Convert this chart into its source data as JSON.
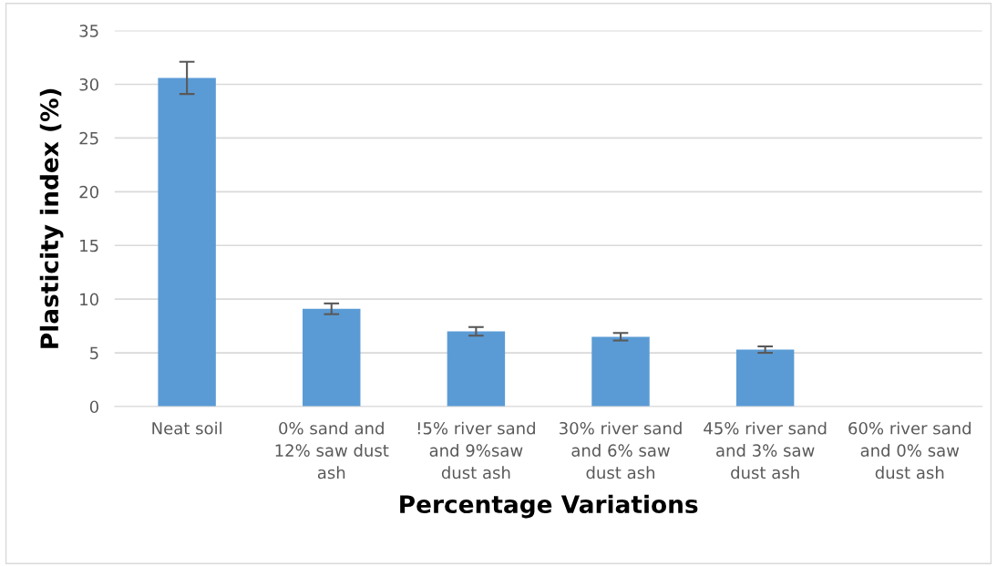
{
  "chart_data": {
    "type": "bar",
    "xlabel": "Percentage Variations",
    "ylabel": "Plasticity index (%)",
    "categories": [
      "Neat soil",
      "0% sand and\n12% saw dust\nash",
      "!5% river sand\nand 9%saw\ndust ash",
      "30% river sand\nand 6% saw\ndust ash",
      "45% river sand\nand 3% saw\ndust ash",
      "60% river sand\nand 0% saw\ndust ash"
    ],
    "values": [
      30.6,
      9.1,
      7.0,
      6.5,
      5.3,
      0
    ],
    "errors": [
      1.5,
      0.5,
      0.4,
      0.35,
      0.3,
      null
    ],
    "color": "#5b9bd5",
    "ylim": [
      0,
      35
    ],
    "yticks": [
      0,
      5,
      10,
      15,
      20,
      25,
      30,
      35
    ],
    "grid": "y"
  }
}
